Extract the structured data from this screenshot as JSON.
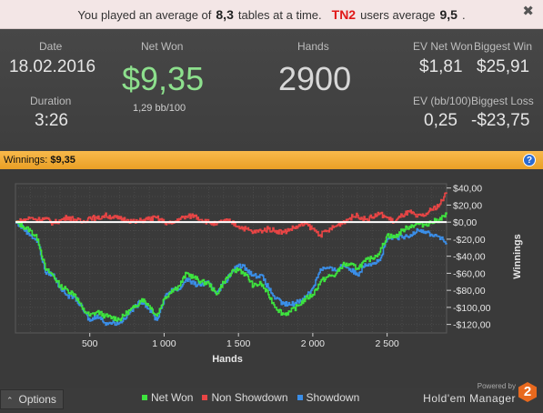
{
  "notification": {
    "prefix": "You played an average of",
    "avg_tables": "8,3",
    "middle": "tables at a time.",
    "group": "TN2",
    "suffix": "users average",
    "group_avg": "9,5",
    "dot": ".",
    "close": "✖"
  },
  "stats": {
    "date_label": "Date",
    "date_value": "18.02.2016",
    "duration_label": "Duration",
    "duration_value": "3:26",
    "netwon_label": "Net Won",
    "netwon_value": "$9,35",
    "netwon_bb": "1,29 bb/100",
    "hands_label": "Hands",
    "hands_value": "2900",
    "ev_net_won_label": "EV Net Won",
    "ev_net_won_value": "$1,81",
    "biggest_win_label": "Biggest Win",
    "biggest_win_value": "$25,91",
    "ev_bb_label": "EV (bb/100)",
    "ev_bb_value": "0,25",
    "biggest_loss_label": "Biggest Loss",
    "biggest_loss_value": "-$23,75"
  },
  "winnings_bar": {
    "label": "Winnings:",
    "amount": "$9,35",
    "help": "?"
  },
  "chart_data": {
    "type": "line",
    "xlabel": "Hands",
    "ylabel": "Winnings",
    "xlim": [
      0,
      2900
    ],
    "ylim": [
      -130,
      45
    ],
    "x_ticks": [
      500,
      1000,
      1500,
      2000,
      2500
    ],
    "x_tick_labels": [
      "500",
      "1 000",
      "1 500",
      "2 000",
      "2 500"
    ],
    "y_ticks": [
      40,
      20,
      0,
      -20,
      -40,
      -60,
      -80,
      -100,
      -120
    ],
    "y_tick_labels": [
      "$40,00",
      "$20,00",
      "$0,00",
      "-$20,00",
      "-$40,00",
      "-$60,00",
      "-$80,00",
      "-$100,00",
      "-$120,00"
    ],
    "zero_line_color": "#ffffff",
    "grid": true,
    "legend_placement": "bottom",
    "x": [
      0,
      50,
      100,
      150,
      200,
      250,
      300,
      350,
      400,
      450,
      500,
      550,
      600,
      650,
      700,
      750,
      800,
      850,
      900,
      950,
      1000,
      1050,
      1100,
      1150,
      1200,
      1250,
      1300,
      1350,
      1400,
      1450,
      1500,
      1550,
      1600,
      1650,
      1700,
      1750,
      1800,
      1850,
      1900,
      1950,
      2000,
      2050,
      2100,
      2150,
      2200,
      2250,
      2300,
      2350,
      2400,
      2450,
      2500,
      2550,
      2600,
      2650,
      2700,
      2750,
      2800,
      2850,
      2900
    ],
    "series": [
      {
        "name": "Net Won",
        "color": "#3ee33e",
        "values": [
          0,
          -5,
          -10,
          -20,
          -55,
          -62,
          -75,
          -80,
          -85,
          -102,
          -110,
          -105,
          -110,
          -112,
          -114,
          -106,
          -100,
          -90,
          -98,
          -110,
          -90,
          -80,
          -75,
          -60,
          -65,
          -70,
          -72,
          -85,
          -70,
          -60,
          -55,
          -62,
          -75,
          -72,
          -85,
          -100,
          -108,
          -105,
          -98,
          -90,
          -85,
          -70,
          -64,
          -62,
          -50,
          -50,
          -54,
          -46,
          -42,
          -35,
          -15,
          -18,
          -10,
          -5,
          -2,
          -3,
          0,
          3,
          9
        ]
      },
      {
        "name": "Non Showdown",
        "color": "#e84545",
        "values": [
          0,
          2,
          5,
          3,
          4,
          -1,
          2,
          6,
          3,
          0,
          6,
          4,
          8,
          6,
          4,
          3,
          0,
          2,
          4,
          5,
          0,
          -2,
          4,
          6,
          8,
          3,
          0,
          -3,
          2,
          0,
          -5,
          -8,
          -12,
          -10,
          -8,
          -10,
          -12,
          -8,
          -5,
          -2,
          -8,
          -15,
          -10,
          -5,
          0,
          5,
          8,
          3,
          6,
          10,
          5,
          0,
          8,
          12,
          6,
          8,
          15,
          20,
          35
        ]
      },
      {
        "name": "Showdown",
        "color": "#3a8ee8",
        "values": [
          0,
          -7,
          -15,
          -23,
          -59,
          -61,
          -77,
          -86,
          -88,
          -102,
          -116,
          -109,
          -118,
          -118,
          -118,
          -109,
          -100,
          -92,
          -102,
          -115,
          -90,
          -78,
          -79,
          -66,
          -73,
          -73,
          -72,
          -82,
          -72,
          -60,
          -50,
          -54,
          -63,
          -62,
          -77,
          -90,
          -96,
          -97,
          -93,
          -88,
          -77,
          -55,
          -54,
          -57,
          -50,
          -55,
          -62,
          -49,
          -48,
          -45,
          -20,
          -18,
          -18,
          -17,
          -8,
          -11,
          -15,
          -17,
          -26
        ]
      }
    ]
  },
  "bottom": {
    "options_label": "Options",
    "chevron": "⌃",
    "legend": [
      {
        "label": "Net Won",
        "color": "#3ee33e"
      },
      {
        "label": "Non Showdown",
        "color": "#e84545"
      },
      {
        "label": "Showdown",
        "color": "#3a8ee8"
      }
    ],
    "powered_by": "Powered by",
    "brand_name": "Hold'em Manager",
    "logo_text": "2"
  }
}
